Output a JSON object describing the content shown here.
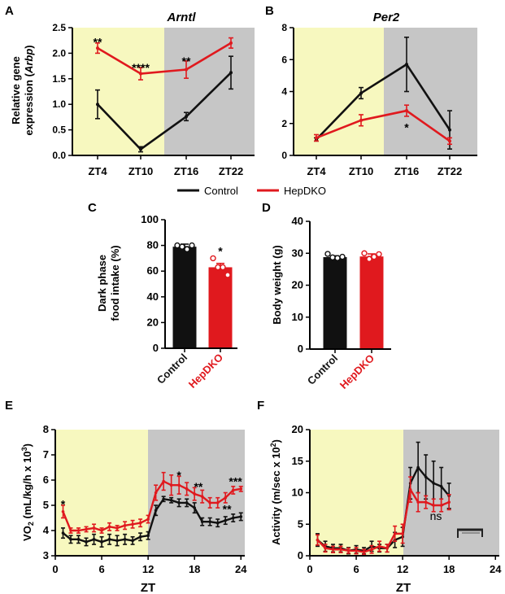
{
  "colors": {
    "control": "#111111",
    "hepdko": "#e0191e",
    "light_phase": "#f7f8bf",
    "dark_phase": "#c6c6c6"
  },
  "legend": {
    "items": [
      {
        "label": "Control",
        "color": "#111111"
      },
      {
        "label": "HepDKO",
        "color": "#e0191e"
      }
    ]
  },
  "chart_data": [
    {
      "panel": "A",
      "type": "line",
      "title": "Arntl",
      "ylabel_line1": "Relative gene",
      "ylabel_line2_prefix": "expression (",
      "ylabel_line2_italic": "Arbp",
      "ylabel_line2_suffix": ")",
      "categories": [
        "ZT4",
        "ZT10",
        "ZT16",
        "ZT22"
      ],
      "ylim": [
        0,
        2.5
      ],
      "yticks": [
        "0.0",
        "0.5",
        "1.0",
        "1.5",
        "2.0",
        "2.5"
      ],
      "series": [
        {
          "name": "Control",
          "values": [
            1.0,
            0.12,
            0.76,
            1.62
          ],
          "errors": [
            0.28,
            0.05,
            0.08,
            0.32
          ]
        },
        {
          "name": "HepDKO",
          "values": [
            2.1,
            1.6,
            1.68,
            2.2
          ],
          "errors": [
            0.1,
            0.12,
            0.17,
            0.1
          ]
        }
      ],
      "annotations": [
        {
          "x": "ZT4",
          "y": 2.22,
          "text": "**"
        },
        {
          "x": "ZT10",
          "y": 1.72,
          "text": "****"
        },
        {
          "x": "ZT16",
          "y": 1.85,
          "text": "**"
        }
      ],
      "shading": [
        {
          "from": "ZT4",
          "to": "ZT10",
          "phase": "light"
        },
        {
          "from": "ZT16",
          "to": "ZT22",
          "phase": "dark"
        }
      ]
    },
    {
      "panel": "B",
      "type": "line",
      "title": "Per2",
      "categories": [
        "ZT4",
        "ZT10",
        "ZT16",
        "ZT22"
      ],
      "ylim": [
        0,
        8
      ],
      "yticks": [
        "0",
        "2",
        "4",
        "6",
        "8"
      ],
      "series": [
        {
          "name": "Control",
          "values": [
            1.0,
            3.9,
            5.7,
            1.6
          ],
          "errors": [
            0.1,
            0.35,
            1.7,
            1.2
          ]
        },
        {
          "name": "HepDKO",
          "values": [
            1.1,
            2.2,
            2.8,
            0.9
          ],
          "errors": [
            0.2,
            0.35,
            0.35,
            0.2
          ]
        }
      ],
      "annotations": [
        {
          "x": "ZT16",
          "y": 1.75,
          "text": "*"
        }
      ],
      "shading": [
        {
          "from": "ZT4",
          "to": "ZT10",
          "phase": "light"
        },
        {
          "from": "ZT16",
          "to": "ZT22",
          "phase": "dark"
        }
      ]
    },
    {
      "panel": "C",
      "type": "bar",
      "ylabel_line1": "Dark phase",
      "ylabel_line2": "food intake (%)",
      "categories": [
        "Control",
        "HepDKO"
      ],
      "category_colors": [
        "#111111",
        "#e0191e"
      ],
      "values": [
        79,
        63
      ],
      "errors": [
        2,
        3
      ],
      "points": [
        [
          80,
          79,
          77,
          80
        ],
        [
          70,
          63,
          63,
          57
        ]
      ],
      "ylim": [
        0,
        100
      ],
      "yticks": [
        "0",
        "20",
        "40",
        "60",
        "80",
        "100"
      ],
      "annotations": [
        {
          "category": "HepDKO",
          "y": 75,
          "text": "*"
        }
      ]
    },
    {
      "panel": "D",
      "type": "bar",
      "ylabel": "Body weight (g)",
      "categories": [
        "Control",
        "HepDKO"
      ],
      "category_colors": [
        "#111111",
        "#e0191e"
      ],
      "values": [
        28.8,
        29.0
      ],
      "errors": [
        0.4,
        0.8
      ],
      "points": [
        [
          29.8,
          28.7,
          28.5,
          28.9
        ],
        [
          30.0,
          28.2,
          28.9,
          29.7
        ]
      ],
      "ylim": [
        0,
        40
      ],
      "yticks": [
        "0",
        "10",
        "20",
        "30",
        "40"
      ]
    },
    {
      "panel": "E",
      "type": "line",
      "ylabel_main": "VO",
      "ylabel_sub": "2",
      "ylabel_rest": " (mL/kg/h x 10",
      "ylabel_sup": "3",
      "ylabel_end": ")",
      "xlabel": "ZT",
      "xlim": [
        0,
        24.5
      ],
      "xticks": [
        "0",
        "6",
        "12",
        "18",
        "24"
      ],
      "ylim": [
        3,
        8
      ],
      "yticks": [
        "3",
        "4",
        "5",
        "6",
        "7",
        "8"
      ],
      "light_until": 12,
      "x": [
        1,
        2,
        3,
        4,
        5,
        6,
        7,
        8,
        9,
        10,
        11,
        12,
        13,
        14,
        15,
        16,
        17,
        18,
        19,
        20,
        21,
        22,
        23,
        24
      ],
      "series": [
        {
          "name": "Control",
          "values": [
            3.9,
            3.65,
            3.65,
            3.55,
            3.65,
            3.55,
            3.65,
            3.6,
            3.65,
            3.6,
            3.75,
            3.8,
            4.8,
            5.25,
            5.2,
            5.1,
            5.1,
            4.9,
            4.35,
            4.35,
            4.3,
            4.4,
            4.5,
            4.55
          ],
          "errors": [
            0.2,
            0.15,
            0.15,
            0.15,
            0.2,
            0.2,
            0.2,
            0.2,
            0.2,
            0.15,
            0.15,
            0.15,
            0.2,
            0.1,
            0.1,
            0.15,
            0.15,
            0.2,
            0.15,
            0.15,
            0.15,
            0.15,
            0.15,
            0.15
          ]
        },
        {
          "name": "HepDKO",
          "values": [
            4.75,
            4.0,
            4.0,
            4.05,
            4.1,
            4.0,
            4.15,
            4.1,
            4.2,
            4.25,
            4.3,
            4.45,
            5.5,
            5.95,
            5.8,
            5.8,
            5.65,
            5.45,
            5.35,
            5.1,
            5.1,
            5.3,
            5.6,
            5.65
          ],
          "errors": [
            0.25,
            0.1,
            0.1,
            0.1,
            0.15,
            0.1,
            0.15,
            0.1,
            0.15,
            0.15,
            0.15,
            0.15,
            0.3,
            0.35,
            0.4,
            0.35,
            0.25,
            0.25,
            0.25,
            0.2,
            0.2,
            0.2,
            0.15,
            0.1
          ]
        }
      ],
      "annotations": [
        {
          "x": 1,
          "y": 5.05,
          "text": "*"
        },
        {
          "x": 16,
          "y": 6.2,
          "text": "*"
        },
        {
          "x": 18.5,
          "y": 5.75,
          "text": "**"
        },
        {
          "x": 22.2,
          "y": 4.85,
          "text": "**"
        },
        {
          "x": 23.3,
          "y": 5.95,
          "text": "***"
        }
      ]
    },
    {
      "panel": "F",
      "type": "line",
      "ylabel_main": "Activity (m/sec x 10",
      "ylabel_sup": "2",
      "ylabel_end": ")",
      "xlabel": "ZT",
      "xlim": [
        0,
        24.5
      ],
      "xticks": [
        "0",
        "6",
        "12",
        "18",
        "24"
      ],
      "ylim": [
        0,
        20
      ],
      "yticks": [
        "0",
        "5",
        "10",
        "15",
        "20"
      ],
      "light_until": 12,
      "x": [
        1,
        2,
        3,
        4,
        5,
        6,
        7,
        8,
        9,
        10,
        11,
        12,
        13,
        14,
        15,
        16,
        17,
        18
      ],
      "series": [
        {
          "name": "Control",
          "values": [
            2.5,
            1.5,
            1.2,
            1.2,
            0.8,
            1.0,
            0.8,
            1.5,
            1.2,
            1.2,
            2.5,
            3.0,
            11.5,
            14.0,
            12.5,
            11.5,
            11.0,
            9.5
          ],
          "errors": [
            1.0,
            0.8,
            0.6,
            0.6,
            0.5,
            0.6,
            0.5,
            0.8,
            0.6,
            0.6,
            1.2,
            1.5,
            2.5,
            4.0,
            3.5,
            3.5,
            3.0,
            2.0
          ]
        },
        {
          "name": "HepDKO",
          "values": [
            2.5,
            1.2,
            1.0,
            1.0,
            0.8,
            0.8,
            0.6,
            1.0,
            1.5,
            1.2,
            3.5,
            3.5,
            10.5,
            8.5,
            8.5,
            8.0,
            8.0,
            8.5
          ],
          "errors": [
            0.8,
            0.6,
            0.5,
            0.5,
            0.4,
            0.5,
            0.4,
            0.6,
            0.8,
            0.6,
            1.2,
            1.5,
            2.0,
            1.5,
            1.0,
            1.0,
            1.0,
            1.2
          ]
        }
      ],
      "annotations": [
        {
          "x": 16.3,
          "y": 6.3,
          "text": "ns"
        }
      ]
    }
  ]
}
